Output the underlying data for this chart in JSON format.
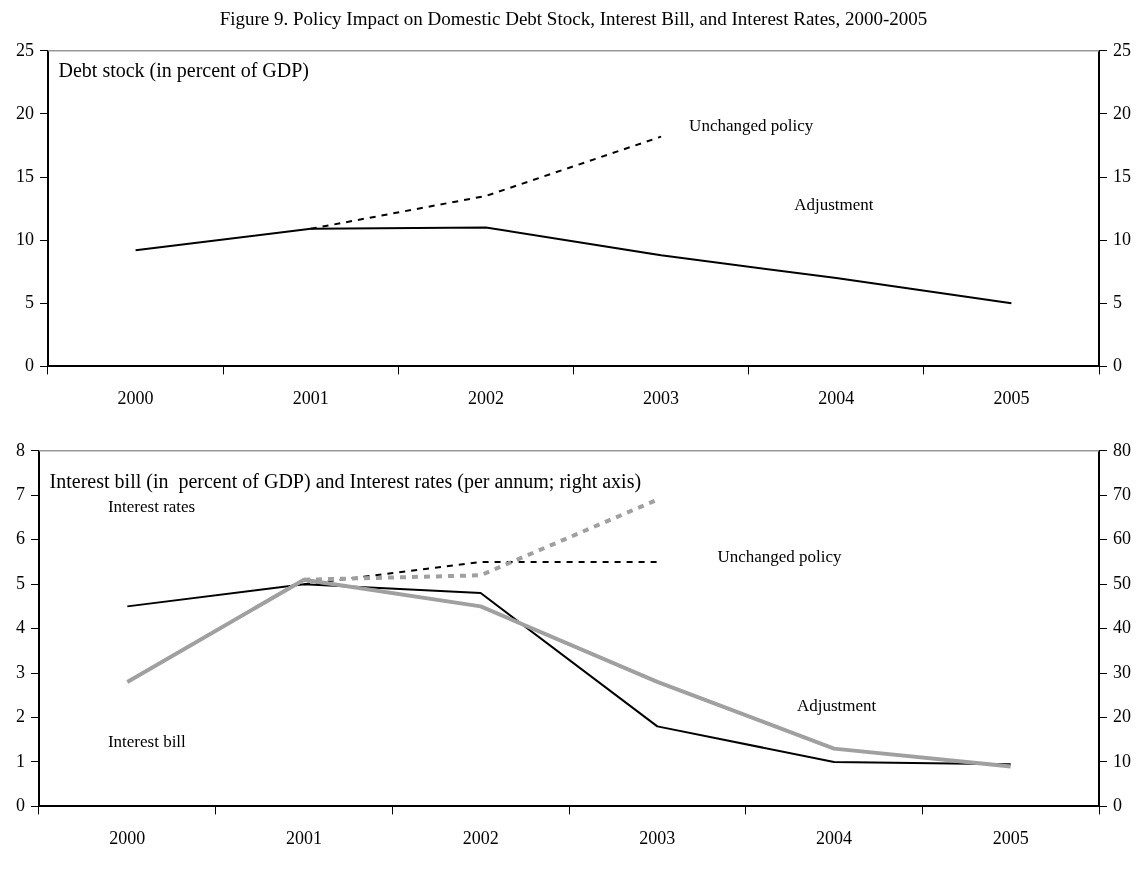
{
  "chart_data": [
    {
      "type": "line",
      "title": "Figure 9. Policy Impact on Domestic Debt Stock, Interest Bill, and Interest Rates, 2000-2005",
      "categories": [
        "2000",
        "2001",
        "2002",
        "2003",
        "2004",
        "2005"
      ],
      "series": [
        {
          "color": "#000000",
          "line_style": "solid",
          "values": [
            9.2,
            10.9,
            11.0,
            8.8,
            7.0,
            5.0
          ]
        },
        {
          "color": "#000000",
          "line_style": "dashed",
          "values": [
            null,
            10.9,
            13.5,
            18.2,
            null,
            null
          ]
        }
      ],
      "ylim": [
        0,
        25
      ],
      "yticks": [
        0,
        5,
        10,
        15,
        20,
        25
      ],
      "y2lim": [
        0,
        25
      ],
      "y2ticks": [
        0,
        5,
        10,
        15,
        20,
        25
      ],
      "grid": false,
      "legend": false,
      "marker": "none",
      "annotations": [
        "Debt stock (in percent of GDP)",
        "Unchanged policy",
        "Adjustment"
      ]
    },
    {
      "type": "line",
      "categories": [
        "2000",
        "2001",
        "2002",
        "2003",
        "2004",
        "2005"
      ],
      "series": [
        {
          "color": "#a0a0a0",
          "line_style": "solid",
          "values": [
            2.8,
            5.1,
            4.5,
            2.8,
            1.3,
            0.9
          ]
        },
        {
          "color": "#a0a0a0",
          "line_style": "dashed",
          "values": [
            null,
            5.1,
            5.2,
            6.9,
            null,
            null
          ]
        },
        {
          "color": "#000000",
          "line_style": "solid",
          "axis": "y2",
          "values": [
            45,
            50,
            48,
            18,
            10,
            9.5
          ]
        },
        {
          "color": "#000000",
          "line_style": "dashed",
          "axis": "y2",
          "values": [
            null,
            50,
            55,
            55,
            null,
            null
          ]
        }
      ],
      "ylim": [
        0,
        8
      ],
      "yticks": [
        0,
        1,
        2,
        3,
        4,
        5,
        6,
        7,
        8
      ],
      "y2lim": [
        0,
        80
      ],
      "y2ticks": [
        0,
        10,
        20,
        30,
        40,
        50,
        60,
        70,
        80
      ],
      "grid": false,
      "legend": false,
      "marker": "none",
      "annotations": [
        "Interest bill (in  percent of GDP) and Interest rates (per annum; right axis)",
        "Interest rates",
        "Interest bill",
        "Unchanged policy",
        "Adjustment"
      ]
    }
  ]
}
